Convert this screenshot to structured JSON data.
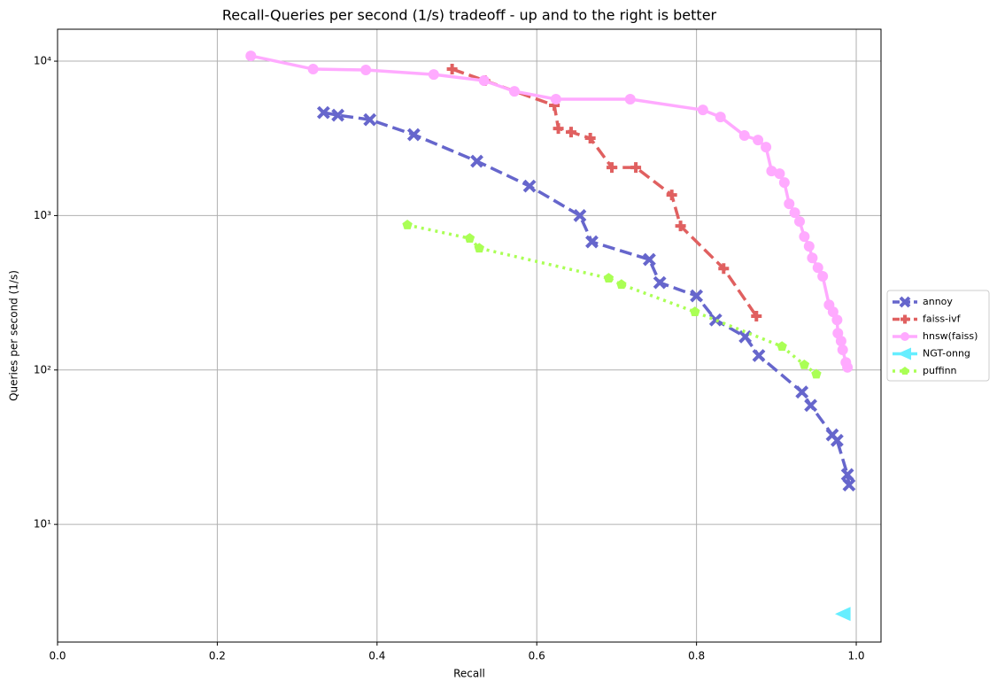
{
  "chart_data": {
    "type": "line",
    "title": "Recall-Queries per second (1/s) tradeoff - up and to the right is better",
    "x_label": "Recall",
    "y_label": "Queries per second (1/s)",
    "xlim": [
      0,
      1.031
    ],
    "ylim": [
      1.73,
      16100
    ],
    "y_scale": "log",
    "grid": true,
    "legend": "right",
    "xticks": [
      {
        "value": 0,
        "label": "0.0"
      },
      0.2,
      0.4,
      0.6,
      0.8,
      {
        "value": 1,
        "label": "1.0"
      }
    ],
    "yticks": [
      {
        "value": 10,
        "label": "10¹"
      },
      {
        "value": 100,
        "label": "10²"
      },
      {
        "value": 1000,
        "label": "10³"
      },
      {
        "value": 10000,
        "label": "10⁴"
      }
    ],
    "series": [
      {
        "name": "annoy",
        "color": "#6666cc",
        "dash": "dashed",
        "marker": "x",
        "x": [
          0.333,
          0.351,
          0.391,
          0.446,
          0.525,
          0.591,
          0.654,
          0.669,
          0.741,
          0.754,
          0.8,
          0.824,
          0.861,
          0.878,
          0.932,
          0.943,
          0.97,
          0.976,
          0.989,
          0.991
        ],
        "values": [
          4645,
          4467,
          4180,
          3342,
          2249,
          1552,
          1000,
          676,
          519,
          368,
          302,
          211,
          164,
          124,
          72,
          59,
          38,
          35,
          21,
          18
        ]
      },
      {
        "name": "faiss-ivf",
        "color": "#e06060",
        "dash": "dashed",
        "marker": "plus",
        "x": [
          0.494,
          0.535,
          0.622,
          0.627,
          0.643,
          0.667,
          0.694,
          0.724,
          0.769,
          0.78,
          0.834,
          0.875
        ],
        "values": [
          8880,
          7480,
          5170,
          3660,
          3474,
          3170,
          2050,
          2050,
          1360,
          857,
          454,
          223
        ]
      },
      {
        "name": "hnsw(faiss)",
        "color": "#ffaaff",
        "dash": "solid",
        "marker": "circle",
        "x": [
          0.242,
          0.32,
          0.386,
          0.471,
          0.534,
          0.572,
          0.624,
          0.717,
          0.808,
          0.83,
          0.86,
          0.877,
          0.887,
          0.894,
          0.904,
          0.91,
          0.916,
          0.923,
          0.929,
          0.935,
          0.941,
          0.945,
          0.952,
          0.958,
          0.966,
          0.971,
          0.976,
          0.977,
          0.981,
          0.983,
          0.987,
          0.989
        ],
        "values": [
          10820,
          8880,
          8770,
          8200,
          7480,
          6380,
          5670,
          5670,
          4830,
          4350,
          3300,
          3085,
          2775,
          1944,
          1868,
          1637,
          1192,
          1044,
          916,
          731,
          632,
          532,
          460,
          404,
          264,
          238,
          211,
          173,
          154,
          135,
          112,
          104
        ]
      },
      {
        "name": "NGT-onng",
        "color": "#66eeff",
        "dash": "solid",
        "marker": "triangle-left",
        "x": [
          0.984
        ],
        "values": [
          2.63
        ]
      },
      {
        "name": "puffinn",
        "color": "#aaff55",
        "dash": "dotted",
        "marker": "pentagon",
        "x": [
          0.438,
          0.516,
          0.528,
          0.69,
          0.706,
          0.798,
          0.907,
          0.935,
          0.95
        ],
        "values": [
          869,
          712,
          615,
          393,
          358,
          238,
          142,
          108,
          94
        ]
      }
    ]
  }
}
